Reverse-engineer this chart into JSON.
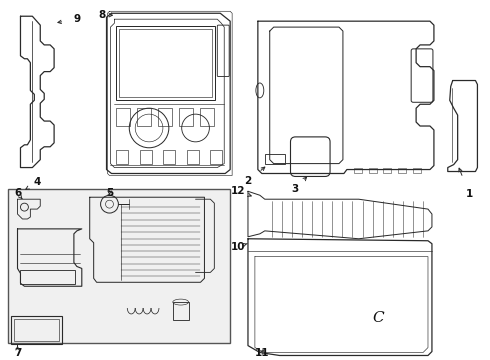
{
  "bg_color": "#f5f5f5",
  "line_color": "#2a2a2a",
  "text_color": "#111111",
  "fig_width": 4.9,
  "fig_height": 3.6,
  "dpi": 100,
  "part9_label": "9",
  "part8_label": "8",
  "part4_label": "4",
  "part6_label": "6",
  "part5_label": "5",
  "part7_label": "7",
  "part2_label": "2",
  "part3_label": "3",
  "part1_label": "1",
  "part10_label": "10",
  "part11_label": "11",
  "part12_label": "12",
  "label_C": "C"
}
